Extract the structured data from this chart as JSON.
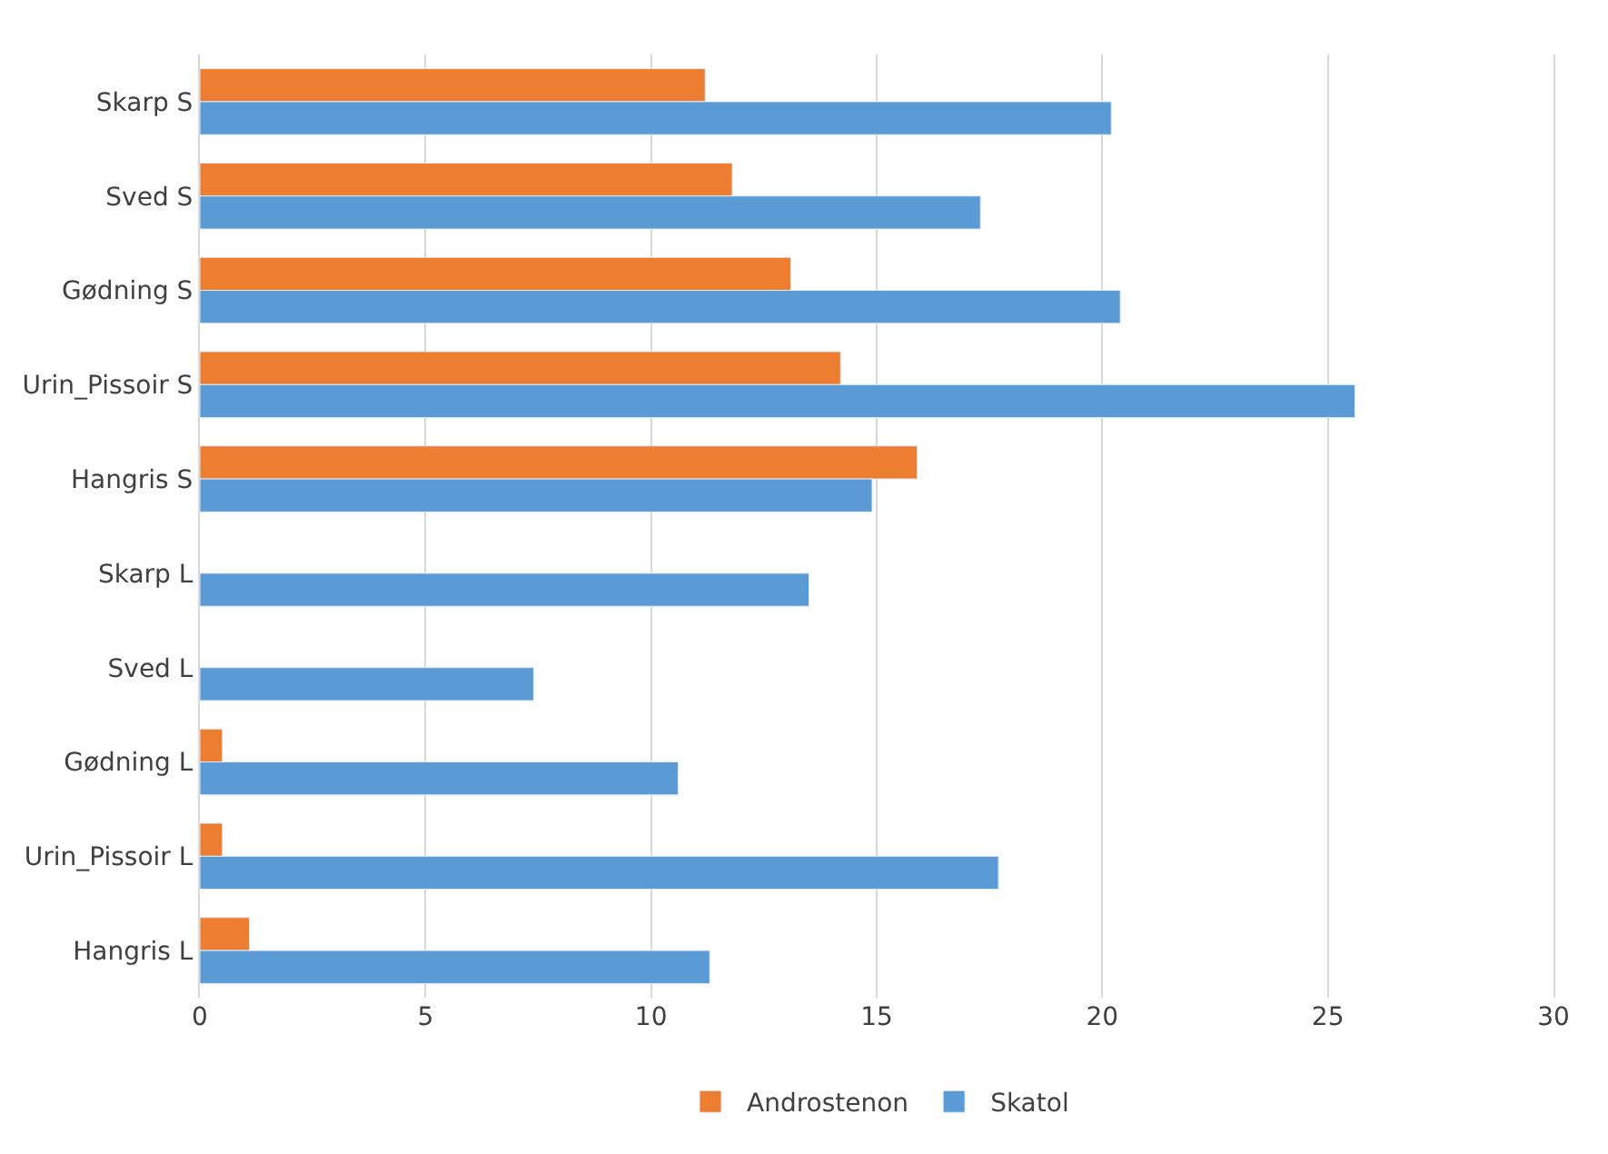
{
  "chart_data": {
    "type": "bar",
    "orientation": "horizontal",
    "categories": [
      "Skarp S",
      "Sved S",
      "Gødning S",
      "Urin_Pissoir S",
      "Hangris S",
      "Skarp L",
      "Sved L",
      "Gødning L",
      "Urin_Pissoir L",
      "Hangris L"
    ],
    "series": [
      {
        "name": "Androstenon",
        "color": "#ed7d31",
        "values": [
          11.2,
          11.8,
          13.1,
          14.2,
          15.9,
          null,
          null,
          0.5,
          0.5,
          1.1
        ]
      },
      {
        "name": "Skatol",
        "color": "#5b9bd5",
        "values": [
          20.2,
          17.3,
          20.4,
          25.6,
          14.9,
          13.5,
          7.4,
          10.6,
          17.7,
          11.3
        ]
      }
    ],
    "xlim": [
      0,
      30
    ],
    "xticks": [
      0,
      5,
      10,
      15,
      20,
      25,
      30
    ],
    "grid": "x",
    "legend": "bottom"
  }
}
